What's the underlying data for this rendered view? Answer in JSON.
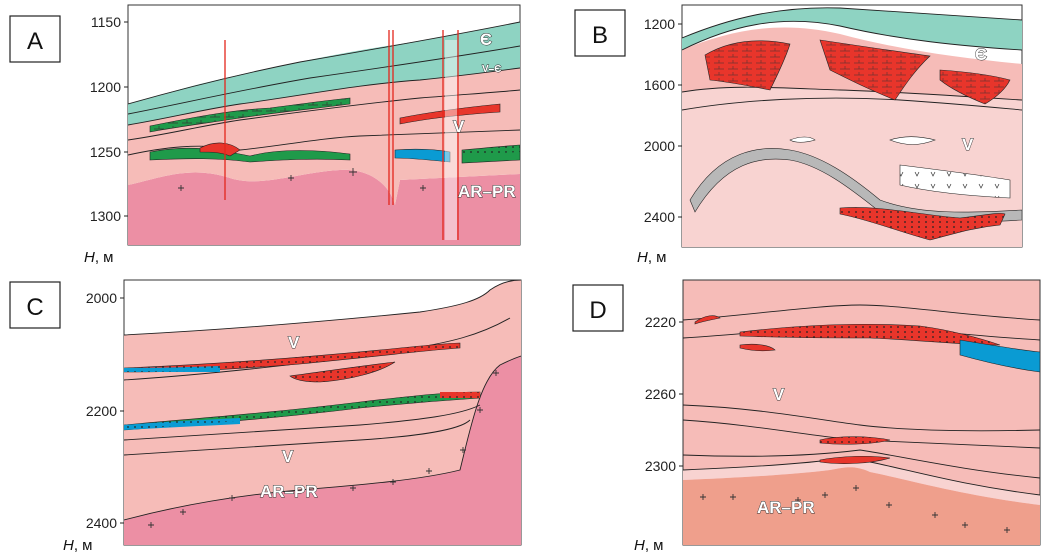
{
  "panels": [
    {
      "letter": "A",
      "depth_ticks": [
        "1150",
        "1200",
        "1250",
        "1300"
      ],
      "axis_unit_symbol": "H",
      "axis_unit_suffix": ", м",
      "labels": [
        "Є",
        "V",
        "AR–PR",
        "V–Є"
      ]
    },
    {
      "letter": "B",
      "depth_ticks": [
        "1200",
        "1600",
        "2000",
        "2400"
      ],
      "axis_unit_symbol": "H",
      "axis_unit_suffix": ", м",
      "labels": [
        "Є",
        "V"
      ]
    },
    {
      "letter": "C",
      "depth_ticks": [
        "2000",
        "2200",
        "2400"
      ],
      "axis_unit_symbol": "H",
      "axis_unit_suffix": ", м",
      "labels": [
        "V",
        "V",
        "AR–PR"
      ]
    },
    {
      "letter": "D",
      "depth_ticks": [
        "2220",
        "2260",
        "2300"
      ],
      "axis_unit_symbol": "H",
      "axis_unit_suffix": ", м",
      "labels": [
        "V",
        "AR–PR"
      ]
    }
  ],
  "colors": {
    "cambrian_teal": "#8ed3c2",
    "vendian_pink": "#f6bcb8",
    "vendian_light": "#f8d3d1",
    "basement_pink": "#ec8fa4",
    "basement_salmon": "#ef9f8c",
    "reservoir_red": "#e8352b",
    "reservoir_green": "#1f9a4a",
    "water_blue": "#0a9bd3",
    "fault_red": "#e3261c"
  }
}
